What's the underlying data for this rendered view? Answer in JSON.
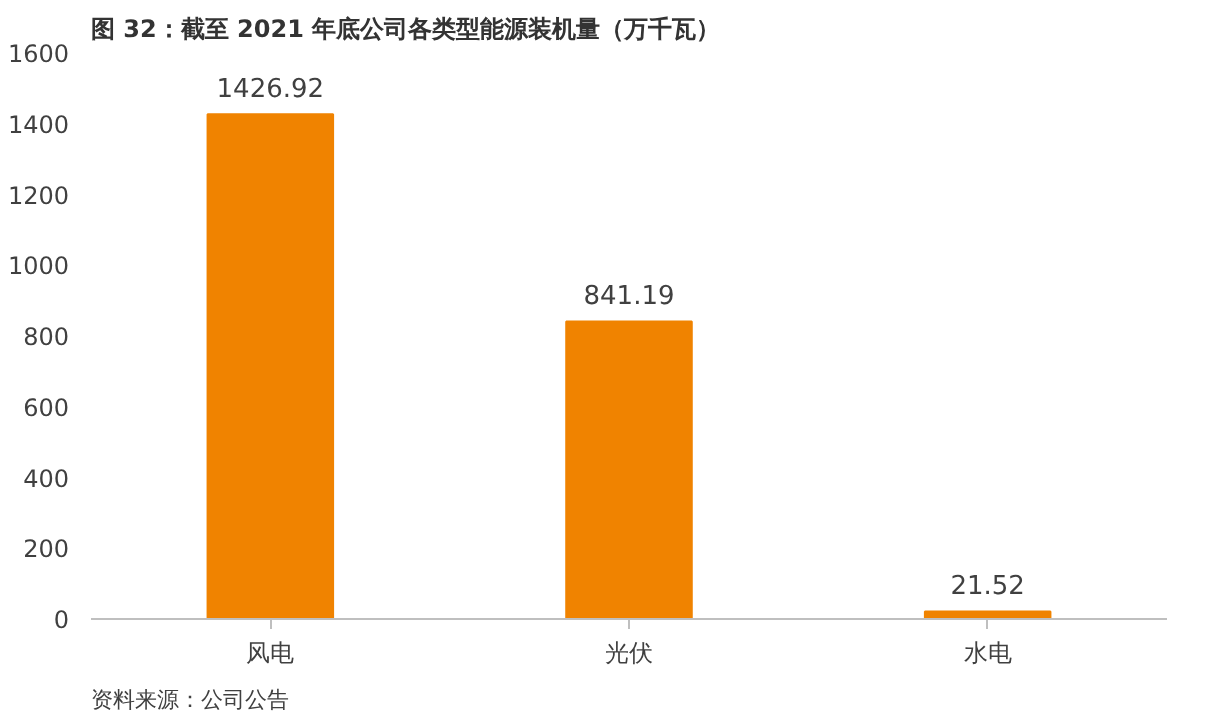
{
  "chart_data": {
    "type": "bar",
    "title": "图 32：截至 2021 年底公司各类型能源装机量（万千瓦）",
    "categories": [
      "风电",
      "光伏",
      "水电"
    ],
    "values": [
      1426.92,
      841.19,
      21.52
    ],
    "color": "#f08300",
    "ylim": [
      0,
      1600
    ],
    "yticks": [
      0,
      200,
      400,
      600,
      800,
      1000,
      1200,
      1400,
      1600
    ],
    "grid": false,
    "data_labels": true,
    "annotations": [
      "资料来源：公司公告"
    ]
  }
}
